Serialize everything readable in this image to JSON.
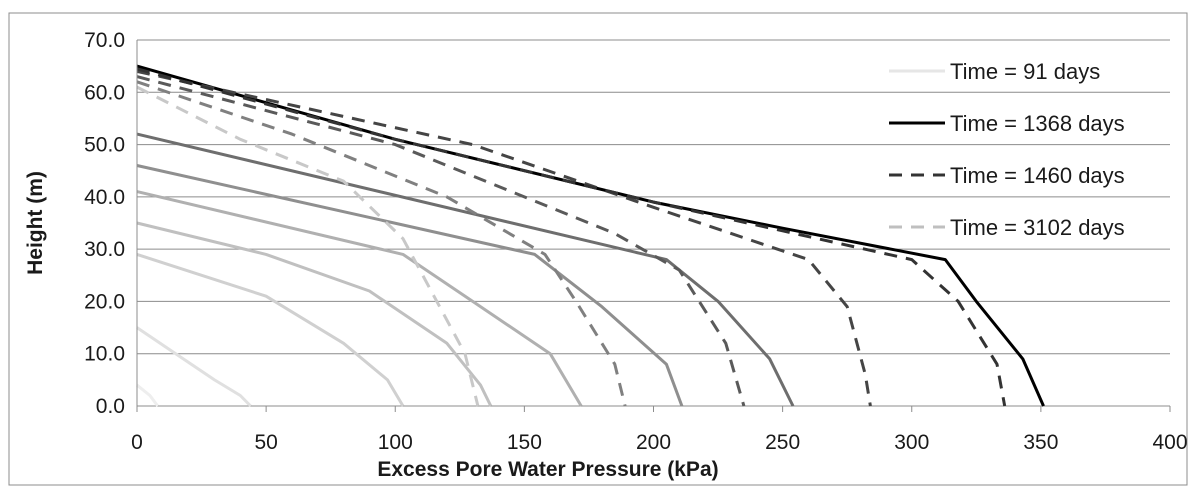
{
  "chart_data": {
    "type": "line",
    "xlabel": "Excess Pore Water Pressure (kPa)",
    "ylabel": "Height (m)",
    "xlim": [
      0,
      400
    ],
    "ylim": [
      0,
      70
    ],
    "x_ticks": [
      "0",
      "50",
      "100",
      "150",
      "200",
      "250",
      "300",
      "350",
      "400"
    ],
    "y_ticks": [
      "0.0",
      "10.0",
      "20.0",
      "30.0",
      "40.0",
      "50.0",
      "60.0",
      "70.0"
    ],
    "grid": "horizontal",
    "legend_position": "top-right",
    "legend": [
      {
        "label": "Time = 91 days",
        "color": "#e6e6e6",
        "dash": "solid"
      },
      {
        "label": "Time = 1368 days",
        "color": "#000000",
        "dash": "solid"
      },
      {
        "label": "Time = 1460 days",
        "color": "#333333",
        "dash": "dashed"
      },
      {
        "label": "Time = 3102 days",
        "color": "#bfbfbf",
        "dash": "dashed"
      }
    ],
    "series": [
      {
        "color": "#eeeeee",
        "dash": "solid",
        "points": [
          [
            0,
            4
          ],
          [
            5,
            2
          ],
          [
            8,
            0
          ]
        ]
      },
      {
        "color": "#e0e0e0",
        "dash": "solid",
        "points": [
          [
            0,
            15
          ],
          [
            15,
            10
          ],
          [
            30,
            5
          ],
          [
            40,
            2
          ],
          [
            44,
            0
          ]
        ]
      },
      {
        "color": "#d0d0d0",
        "dash": "solid",
        "points": [
          [
            0,
            29
          ],
          [
            50,
            21
          ],
          [
            80,
            12
          ],
          [
            97,
            5
          ],
          [
            103,
            0
          ]
        ]
      },
      {
        "color": "#c0c0c0",
        "dash": "solid",
        "points": [
          [
            0,
            35
          ],
          [
            50,
            29
          ],
          [
            90,
            22
          ],
          [
            120,
            12
          ],
          [
            133,
            4
          ],
          [
            137,
            0
          ]
        ]
      },
      {
        "color": "#b0b0b0",
        "dash": "solid",
        "points": [
          [
            0,
            41
          ],
          [
            103,
            29
          ],
          [
            130,
            20
          ],
          [
            160,
            10
          ],
          [
            172,
            0
          ]
        ]
      },
      {
        "color": "#8f8f8f",
        "dash": "solid",
        "points": [
          [
            0,
            46
          ],
          [
            154,
            29
          ],
          [
            180,
            19
          ],
          [
            205,
            8
          ],
          [
            211,
            0
          ]
        ]
      },
      {
        "color": "#6e6e6e",
        "dash": "solid",
        "points": [
          [
            0,
            52
          ],
          [
            205,
            28
          ],
          [
            225,
            20
          ],
          [
            245,
            9
          ],
          [
            254,
            0
          ]
        ]
      },
      {
        "color": "#000000",
        "dash": "solid",
        "points": [
          [
            0,
            65
          ],
          [
            100,
            51
          ],
          [
            200,
            39
          ],
          [
            250,
            34
          ],
          [
            313,
            28
          ],
          [
            325,
            20
          ],
          [
            343,
            9
          ],
          [
            351,
            0
          ]
        ]
      },
      {
        "color": "#c8c8c8",
        "dash": "dashed",
        "points": [
          [
            0,
            61
          ],
          [
            40,
            51
          ],
          [
            80,
            43
          ],
          [
            103,
            32
          ],
          [
            115,
            21
          ],
          [
            127,
            10
          ],
          [
            132,
            0
          ]
        ]
      },
      {
        "color": "#808080",
        "dash": "dashed",
        "points": [
          [
            0,
            62
          ],
          [
            60,
            52
          ],
          [
            120,
            40
          ],
          [
            158,
            29
          ],
          [
            170,
            20
          ],
          [
            185,
            8
          ],
          [
            189,
            0
          ]
        ]
      },
      {
        "color": "#5a5a5a",
        "dash": "dashed",
        "points": [
          [
            0,
            63
          ],
          [
            100,
            50
          ],
          [
            185,
            33
          ],
          [
            210,
            26
          ],
          [
            228,
            12
          ],
          [
            235,
            0
          ]
        ]
      },
      {
        "color": "#454545",
        "dash": "dashed",
        "points": [
          [
            0,
            64
          ],
          [
            130,
            50
          ],
          [
            200,
            38
          ],
          [
            260,
            28
          ],
          [
            275,
            19
          ],
          [
            282,
            6
          ],
          [
            284,
            0
          ]
        ]
      },
      {
        "color": "#333333",
        "dash": "dashed",
        "points": [
          [
            0,
            64.5
          ],
          [
            100,
            51
          ],
          [
            200,
            39
          ],
          [
            300,
            28
          ],
          [
            318,
            20
          ],
          [
            333,
            8
          ],
          [
            336,
            0
          ]
        ]
      }
    ]
  }
}
